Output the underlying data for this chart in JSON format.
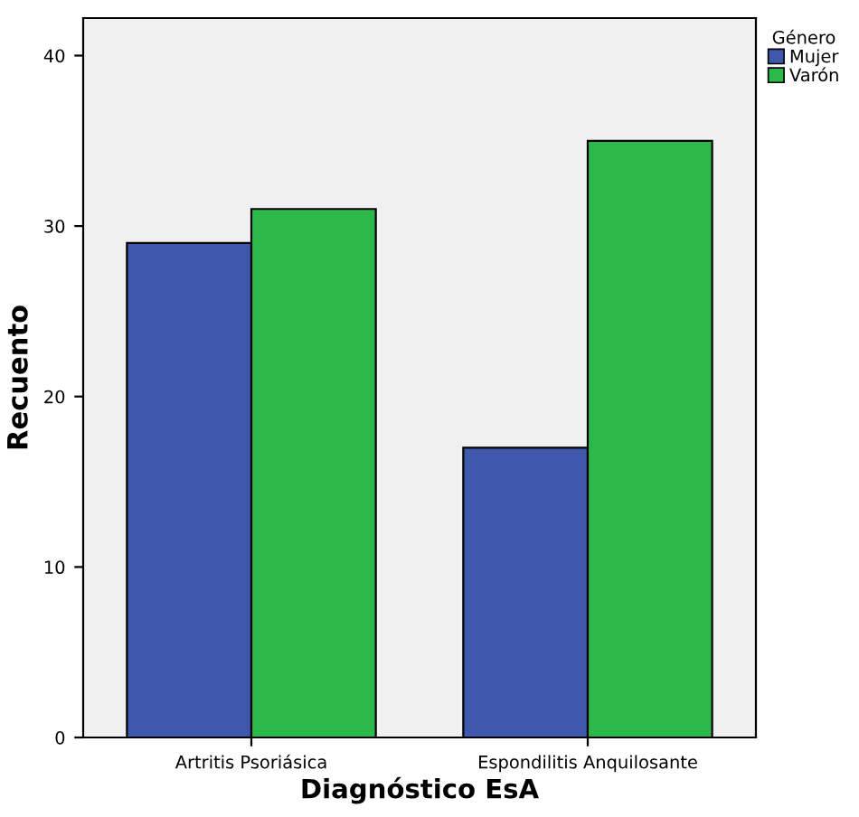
{
  "chart_data": {
    "type": "bar",
    "xlabel": "Diagnóstico EsA",
    "ylabel": "Recuento",
    "categories": [
      "Artritis Psoriásica",
      "Espondilitis Anquilosante"
    ],
    "series": [
      {
        "name": "Mujer",
        "color": "#3e58ac",
        "values": [
          29,
          17
        ]
      },
      {
        "name": "Varón",
        "color": "#2db84a",
        "values": [
          31,
          35
        ]
      }
    ],
    "legend_title": "Género",
    "legend": "top right",
    "ylim": [
      0,
      42.2
    ],
    "yticks": [
      0,
      10,
      20,
      30,
      40
    ],
    "grid": false
  }
}
